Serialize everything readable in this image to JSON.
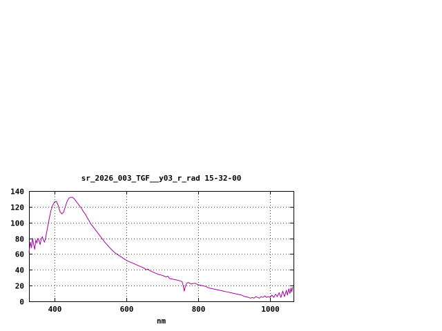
{
  "page": {
    "background": "#ffffff",
    "text_color": "#000000"
  },
  "chart_data": {
    "type": "line",
    "title": "sr_2026_003_TGF__y03_r_rad 15-32-00",
    "xlabel": "nm",
    "ylabel": "",
    "xlim": [
      329,
      1065
    ],
    "ylim": [
      0,
      140
    ],
    "xticks": [
      400,
      600,
      800,
      1000
    ],
    "yticks": [
      0,
      20,
      40,
      60,
      80,
      100,
      120,
      140
    ],
    "grid": true,
    "grid_style": "dotted",
    "border_color": "#000000",
    "line_color": "#a000a0",
    "legend": "none",
    "series": [
      {
        "name": "sr_2026_003_TGF__y03_r_rad",
        "points": [
          [
            329,
            62
          ],
          [
            333,
            75
          ],
          [
            336,
            68
          ],
          [
            339,
            80
          ],
          [
            342,
            72
          ],
          [
            345,
            66
          ],
          [
            348,
            78
          ],
          [
            351,
            74
          ],
          [
            354,
            80
          ],
          [
            357,
            77
          ],
          [
            360,
            72
          ],
          [
            363,
            79
          ],
          [
            366,
            82
          ],
          [
            369,
            78
          ],
          [
            372,
            75
          ],
          [
            375,
            80
          ],
          [
            380,
            92
          ],
          [
            385,
            104
          ],
          [
            390,
            115
          ],
          [
            395,
            122
          ],
          [
            400,
            126
          ],
          [
            405,
            127
          ],
          [
            410,
            122
          ],
          [
            415,
            114
          ],
          [
            420,
            111
          ],
          [
            425,
            113
          ],
          [
            430,
            120
          ],
          [
            435,
            127
          ],
          [
            440,
            131
          ],
          [
            445,
            132
          ],
          [
            450,
            132
          ],
          [
            455,
            130
          ],
          [
            460,
            127
          ],
          [
            465,
            124
          ],
          [
            470,
            121
          ],
          [
            475,
            118
          ],
          [
            480,
            114
          ],
          [
            485,
            111
          ],
          [
            490,
            107
          ],
          [
            495,
            103
          ],
          [
            500,
            99
          ],
          [
            510,
            93
          ],
          [
            520,
            87
          ],
          [
            530,
            81
          ],
          [
            540,
            75
          ],
          [
            550,
            70
          ],
          [
            560,
            65
          ],
          [
            570,
            61
          ],
          [
            580,
            58
          ],
          [
            590,
            55
          ],
          [
            600,
            52
          ],
          [
            610,
            50
          ],
          [
            620,
            48
          ],
          [
            630,
            46
          ],
          [
            640,
            44
          ],
          [
            650,
            42
          ],
          [
            655,
            40
          ],
          [
            660,
            41
          ],
          [
            665,
            39
          ],
          [
            670,
            38
          ],
          [
            680,
            36
          ],
          [
            690,
            34
          ],
          [
            700,
            33
          ],
          [
            710,
            31
          ],
          [
            715,
            32
          ],
          [
            720,
            29
          ],
          [
            730,
            28
          ],
          [
            740,
            27
          ],
          [
            750,
            26
          ],
          [
            755,
            25
          ],
          [
            758,
            20
          ],
          [
            761,
            13
          ],
          [
            764,
            19
          ],
          [
            768,
            23
          ],
          [
            772,
            24
          ],
          [
            776,
            23
          ],
          [
            780,
            22
          ],
          [
            790,
            23
          ],
          [
            800,
            21
          ],
          [
            810,
            20
          ],
          [
            820,
            19
          ],
          [
            830,
            17
          ],
          [
            840,
            16
          ],
          [
            850,
            15
          ],
          [
            860,
            14
          ],
          [
            870,
            13
          ],
          [
            880,
            12
          ],
          [
            890,
            11
          ],
          [
            900,
            10
          ],
          [
            910,
            9
          ],
          [
            920,
            8
          ],
          [
            930,
            6
          ],
          [
            940,
            5
          ],
          [
            945,
            4
          ],
          [
            950,
            5
          ],
          [
            955,
            4
          ],
          [
            960,
            6
          ],
          [
            965,
            5
          ],
          [
            970,
            4
          ],
          [
            975,
            6
          ],
          [
            980,
            5
          ],
          [
            985,
            7
          ],
          [
            990,
            5
          ],
          [
            995,
            6
          ],
          [
            1000,
            5
          ],
          [
            1005,
            8
          ],
          [
            1010,
            5
          ],
          [
            1015,
            9
          ],
          [
            1020,
            6
          ],
          [
            1025,
            11
          ],
          [
            1030,
            5
          ],
          [
            1035,
            13
          ],
          [
            1040,
            6
          ],
          [
            1045,
            14
          ],
          [
            1048,
            8
          ],
          [
            1052,
            16
          ],
          [
            1055,
            10
          ],
          [
            1058,
            17
          ],
          [
            1060,
            12
          ],
          [
            1063,
            18
          ]
        ]
      }
    ]
  }
}
